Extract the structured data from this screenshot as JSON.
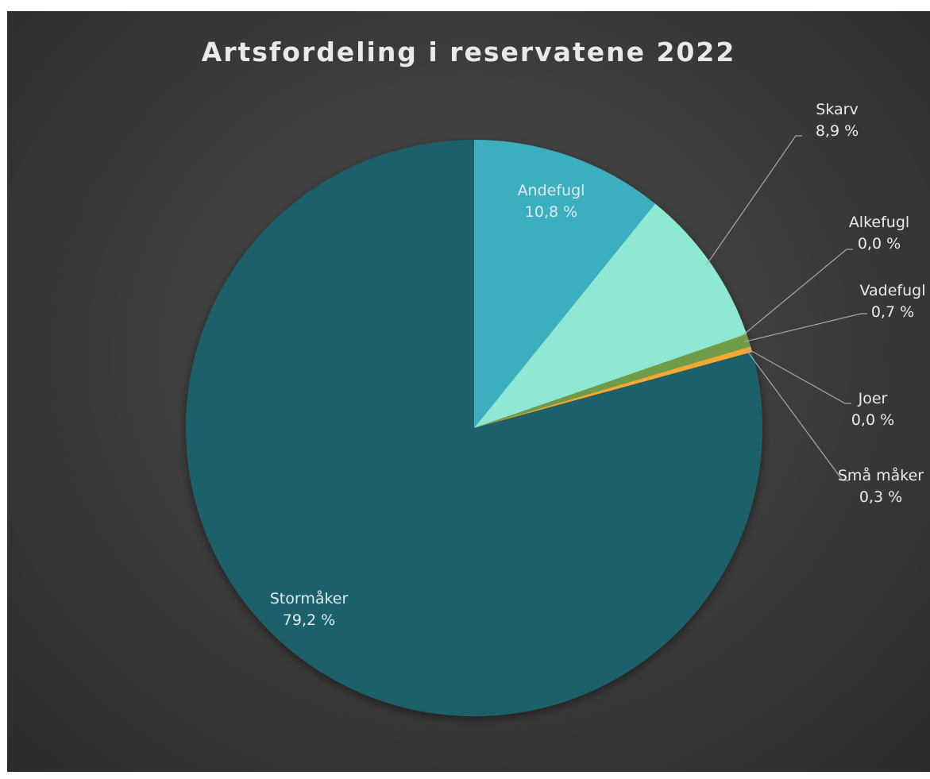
{
  "chart_data": {
    "type": "pie",
    "title": "Artsfordeling i reservatene 2022",
    "start_angle_deg": 0,
    "direction": "clockwise",
    "slices": [
      {
        "label": "Andefugl",
        "value_text": "10,8 %",
        "value": 10.8,
        "color": "#3aaec0",
        "label_position": "inside"
      },
      {
        "label": "Skarv",
        "value_text": "8,9 %",
        "value": 8.9,
        "color": "#8ee8d3",
        "label_position": "outside"
      },
      {
        "label": "Alkefugl",
        "value_text": "0,0 %",
        "value": 0.02,
        "color": "#9bc36b",
        "label_position": "outside"
      },
      {
        "label": "Vadefugl",
        "value_text": "0,7 %",
        "value": 0.7,
        "color": "#6f9b46",
        "label_position": "outside"
      },
      {
        "label": "Joer",
        "value_text": "0,0 %",
        "value": 0.02,
        "color": "#ffd34d",
        "label_position": "outside"
      },
      {
        "label": "Små måker",
        "value_text": "0,3 %",
        "value": 0.3,
        "color": "#f3a931",
        "label_position": "outside"
      },
      {
        "label": "Stormåker",
        "value_text": "79,2 %",
        "value": 79.2,
        "color": "#1e616b",
        "label_position": "inside"
      }
    ],
    "background": "#3f3f3f",
    "legend": "none"
  }
}
